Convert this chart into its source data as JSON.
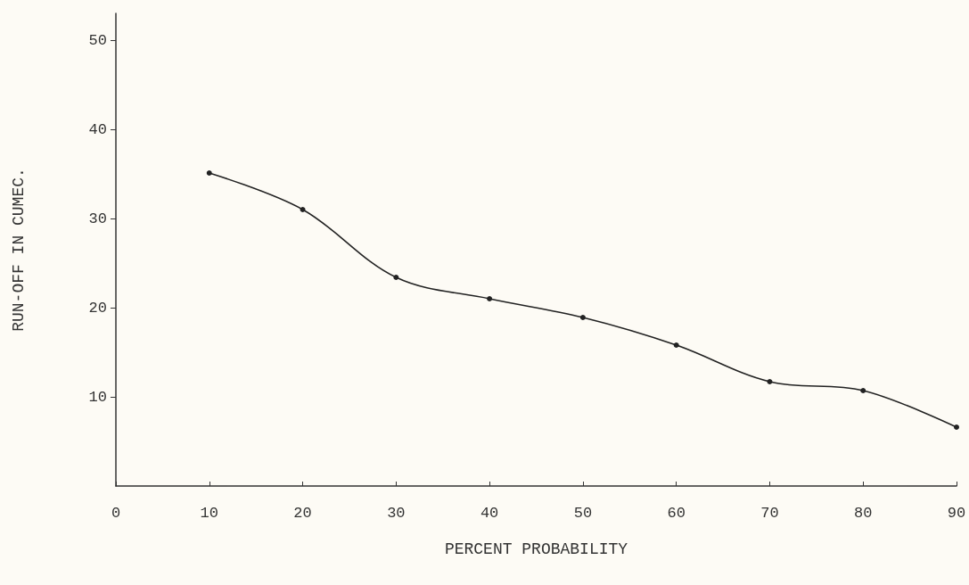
{
  "chart_data": {
    "type": "line",
    "xlabel": "PERCENT PROBABILITY",
    "ylabel": "RUN-OFF IN CUMEC.",
    "x": [
      10,
      20,
      30,
      40,
      50,
      60,
      70,
      80,
      90
    ],
    "series": [
      {
        "color": "#222222",
        "values": [
          35.1,
          31.0,
          23.4,
          21.0,
          18.9,
          15.8,
          11.7,
          10.7,
          6.6
        ]
      }
    ],
    "xlim": [
      0,
      90
    ],
    "xticks": [
      0,
      10,
      20,
      30,
      40,
      50,
      60,
      70,
      80,
      90
    ],
    "ylim": [
      0,
      53
    ],
    "yticks": [
      10,
      20,
      30,
      40,
      50
    ],
    "grid": false,
    "marker": "circle",
    "line_style": "solid"
  }
}
